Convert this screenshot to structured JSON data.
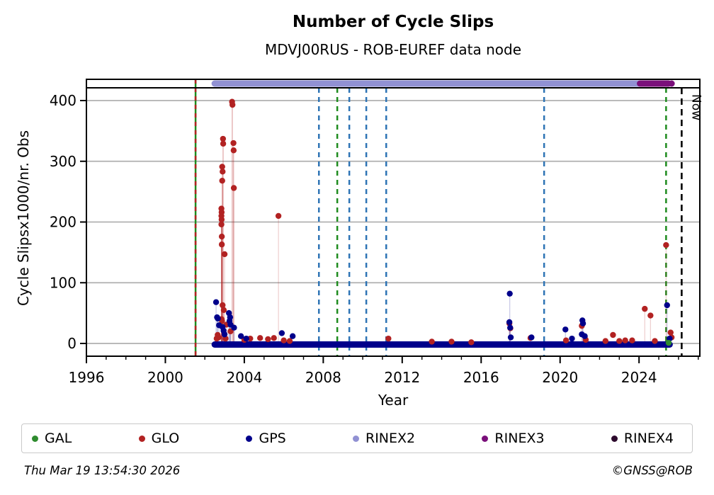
{
  "header": {
    "title": "Number of Cycle Slips",
    "subtitle": "MDVJ00RUS - ROB-EUREF data node"
  },
  "chart_data": {
    "type": "scatter",
    "title": "Number of Cycle Slips",
    "subtitle": "MDVJ00RUS - ROB-EUREF data node",
    "xlabel": "Year",
    "ylabel": "Cycle Slipsx1000/nr. Obs",
    "xlim": [
      1996,
      2027.08
    ],
    "ylim": [
      -21,
      421
    ],
    "xticks": [
      1996,
      2000,
      2004,
      2008,
      2012,
      2016,
      2020,
      2024
    ],
    "yticks": [
      0,
      100,
      200,
      300,
      400
    ],
    "grid": "horizontal-only",
    "legend_position": "bottom",
    "now_line": {
      "label": "Now",
      "year": 2026.16,
      "color": "#000000"
    },
    "series": [
      {
        "name": "GLO",
        "color": "#b22222",
        "points": [
          [
            2003.38,
            398
          ],
          [
            2003.4,
            393
          ],
          [
            2002.92,
            337
          ],
          [
            2002.93,
            329
          ],
          [
            2003.45,
            330
          ],
          [
            2003.46,
            318
          ],
          [
            2002.88,
            291
          ],
          [
            2002.9,
            283
          ],
          [
            2002.88,
            268
          ],
          [
            2003.47,
            256
          ],
          [
            2002.84,
            222
          ],
          [
            2002.85,
            216
          ],
          [
            2002.84,
            210
          ],
          [
            2002.85,
            204
          ],
          [
            2002.84,
            196
          ],
          [
            2002.86,
            176
          ],
          [
            2002.86,
            163
          ],
          [
            2003.0,
            147
          ],
          [
            2005.73,
            210
          ],
          [
            2002.9,
            63
          ],
          [
            2002.96,
            55
          ],
          [
            2002.85,
            40
          ],
          [
            2002.87,
            37
          ],
          [
            2003.1,
            31
          ],
          [
            2003.3,
            20
          ],
          [
            2002.65,
            14
          ],
          [
            2002.7,
            10
          ],
          [
            2002.6,
            8
          ],
          [
            2003.05,
            8
          ],
          [
            2004.0,
            6
          ],
          [
            2004.3,
            8
          ],
          [
            2004.8,
            9
          ],
          [
            2005.2,
            7
          ],
          [
            2005.5,
            9
          ],
          [
            2006.0,
            5
          ],
          [
            2006.3,
            4
          ],
          [
            2011.3,
            8
          ],
          [
            2013.5,
            3
          ],
          [
            2014.5,
            3
          ],
          [
            2015.5,
            2
          ],
          [
            2017.43,
            33
          ],
          [
            2017.48,
            25
          ],
          [
            2018.5,
            9
          ],
          [
            2020.3,
            5
          ],
          [
            2021.1,
            29
          ],
          [
            2021.3,
            6
          ],
          [
            2022.3,
            4
          ],
          [
            2022.68,
            14
          ],
          [
            2023.0,
            4
          ],
          [
            2023.3,
            5
          ],
          [
            2023.65,
            5
          ],
          [
            2024.29,
            57
          ],
          [
            2024.58,
            46
          ],
          [
            2024.8,
            4
          ],
          [
            2025.37,
            162
          ],
          [
            2025.6,
            18
          ],
          [
            2025.65,
            10
          ]
        ],
        "baseline_band": {
          "from": 2002.55,
          "to": 2003.3,
          "value": 0
        }
      },
      {
        "name": "GPS",
        "color": "#00008b",
        "points": [
          [
            2002.57,
            68
          ],
          [
            2002.62,
            43
          ],
          [
            2002.66,
            41
          ],
          [
            2002.72,
            30
          ],
          [
            2003.22,
            50
          ],
          [
            2003.28,
            43
          ],
          [
            2003.25,
            37
          ],
          [
            2003.3,
            31
          ],
          [
            2002.9,
            27
          ],
          [
            2002.95,
            21
          ],
          [
            2003.0,
            15
          ],
          [
            2003.48,
            26
          ],
          [
            2003.83,
            12
          ],
          [
            2004.1,
            8
          ],
          [
            2005.9,
            17
          ],
          [
            2006.45,
            12
          ],
          [
            2017.45,
            82
          ],
          [
            2017.43,
            35
          ],
          [
            2017.47,
            26
          ],
          [
            2017.5,
            10
          ],
          [
            2018.55,
            10
          ],
          [
            2020.27,
            23
          ],
          [
            2020.6,
            8
          ],
          [
            2021.13,
            38
          ],
          [
            2021.16,
            33
          ],
          [
            2021.1,
            15
          ],
          [
            2021.25,
            12
          ],
          [
            2025.42,
            63
          ],
          [
            2025.55,
            8
          ]
        ],
        "baseline_band": {
          "from": 2002.5,
          "to": 2025.55,
          "value": 0
        }
      },
      {
        "name": "GAL",
        "color": "#2e8b2e",
        "points": [
          [
            2025.5,
            1
          ]
        ]
      }
    ],
    "availability_bars": [
      {
        "name": "RINEX2",
        "color": "#9191d3",
        "from": 2002.5,
        "to": 2024.65
      },
      {
        "name": "RINEX3",
        "color": "#7a0f7a",
        "from": 2024.05,
        "to": 2025.5
      },
      {
        "name": "RINEX3",
        "color": "#7a0f7a",
        "dot_at": 2025.65
      }
    ],
    "event_lines": [
      {
        "year": 2001.53,
        "color": "#1e8b1e",
        "overlay_color": "#b22222",
        "style": "dashed",
        "full_height": true
      },
      {
        "year": 2007.78,
        "color": "#2e74b5",
        "style": "dashed"
      },
      {
        "year": 2008.71,
        "color": "#1e8b1e",
        "style": "dashed"
      },
      {
        "year": 2009.32,
        "color": "#2e74b5",
        "style": "dashed"
      },
      {
        "year": 2010.18,
        "color": "#2e74b5",
        "style": "dashed"
      },
      {
        "year": 2011.19,
        "color": "#2e74b5",
        "style": "dashed"
      },
      {
        "year": 2019.19,
        "color": "#2e74b5",
        "style": "dashed"
      },
      {
        "year": 2025.37,
        "color": "#1e8b1e",
        "style": "dashed"
      }
    ]
  },
  "legend": {
    "items": [
      {
        "label": "GAL",
        "color": "#2e8b2e"
      },
      {
        "label": "GLO",
        "color": "#b22222"
      },
      {
        "label": "GPS",
        "color": "#00008b"
      },
      {
        "label": "RINEX2",
        "color": "#9191d3"
      },
      {
        "label": "RINEX3",
        "color": "#7a0f7a"
      },
      {
        "label": "RINEX4",
        "color": "#2d0a2d"
      }
    ]
  },
  "footer": {
    "timestamp": "Thu Mar 19 13:54:30 2026",
    "credit": "©GNSS@ROB"
  }
}
